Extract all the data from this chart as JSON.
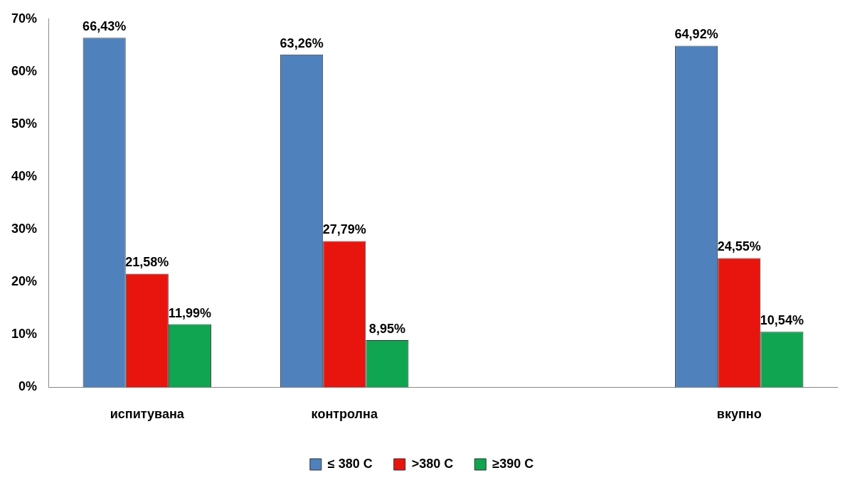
{
  "chart_data": {
    "type": "bar",
    "categories": [
      "испитувана",
      "контролна",
      null,
      "вкупно"
    ],
    "series": [
      {
        "name": "≤ 380 C",
        "color": "#4f81bd",
        "values": [
          66.43,
          63.26,
          null,
          64.92
        ],
        "value_labels": [
          "66,43%",
          "63,26%",
          null,
          "64,92%"
        ]
      },
      {
        "name": ">380 C",
        "color": "#e8150f",
        "values": [
          21.58,
          27.79,
          null,
          24.55
        ],
        "value_labels": [
          "21,58%",
          "27,79%",
          null,
          "24,55%"
        ]
      },
      {
        "name": "≥390 C",
        "color": "#10a550",
        "values": [
          11.99,
          8.95,
          null,
          10.54
        ],
        "value_labels": [
          "11,99%",
          "8,95%",
          null,
          "10,54%"
        ]
      }
    ],
    "ylim": [
      0,
      70
    ],
    "yticks": [
      {
        "value": 0,
        "label": "0%"
      },
      {
        "value": 10,
        "label": "10%"
      },
      {
        "value": 20,
        "label": "20%"
      },
      {
        "value": 30,
        "label": "30%"
      },
      {
        "value": 40,
        "label": "40%"
      },
      {
        "value": 50,
        "label": "50%"
      },
      {
        "value": 60,
        "label": "60%"
      },
      {
        "value": 70,
        "label": "70%"
      }
    ],
    "grid": false,
    "legend": "bottom"
  }
}
